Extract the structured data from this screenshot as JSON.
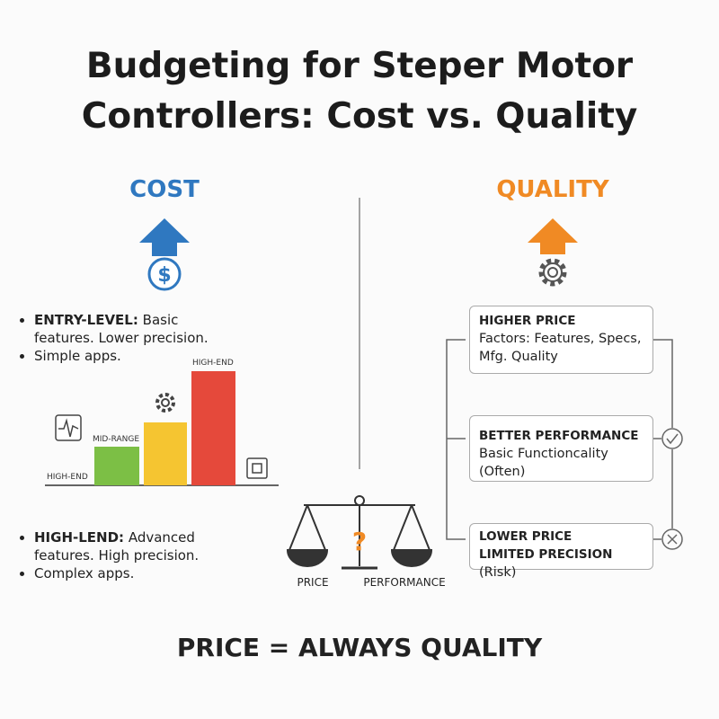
{
  "title": "Budgeting for Steper Motor Controllers: Cost vs. Quality",
  "cost": {
    "heading": "COST",
    "icon_symbol": "$",
    "top_bullets": [
      {
        "label": "ENTRY-LEVEL:",
        "text": "Basic features. Lower precision."
      },
      {
        "text": "Simple apps."
      }
    ],
    "bar_labels": [
      "HIGH-END",
      "MID-RANGE",
      "HIGH-END"
    ],
    "bottom_bullets": [
      {
        "label": "HIGH-LEND:",
        "text": "Advanced features. High precision."
      },
      {
        "text": "Complex apps."
      }
    ]
  },
  "scale": {
    "symbol": "?",
    "left": "PRICE",
    "right": "PERFORMANCE"
  },
  "quality": {
    "heading": "QUALITY",
    "boxes": [
      {
        "title": "HIGHER PRICE",
        "text": "Factors: Features, Specs, Mfg. Quality"
      },
      {
        "title": "BETTER PERFORMANCE",
        "text": "Basic Functioncality (Often)"
      },
      {
        "title": "LOWER PRICE",
        "title2": "LIMITED PRECISION",
        "text": "(Risk)"
      }
    ]
  },
  "footer": "PRICE = ALWAYS QUALITY"
}
